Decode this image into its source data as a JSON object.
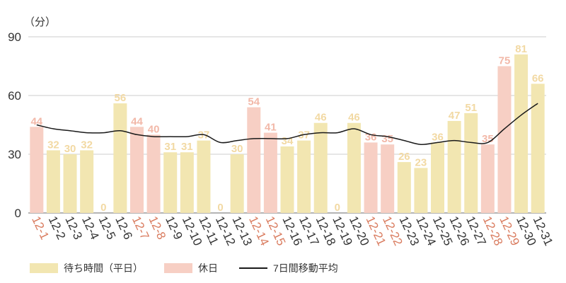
{
  "chart_data": {
    "type": "bar",
    "unit_label": "（分）",
    "ylim": [
      0,
      90
    ],
    "yticks": [
      0,
      30,
      60,
      90
    ],
    "grid": true,
    "categories": [
      "12-1",
      "12-2",
      "12-3",
      "12-4",
      "12-5",
      "12-6",
      "12-7",
      "12-8",
      "12-9",
      "12-10",
      "12-11",
      "12-12",
      "12-13",
      "12-14",
      "12-15",
      "12-16",
      "12-17",
      "12-18",
      "12-19",
      "12-20",
      "12-21",
      "12-22",
      "12-23",
      "12-24",
      "12-25",
      "12-26",
      "12-27",
      "12-28",
      "12-29",
      "12-30",
      "12-31"
    ],
    "values": [
      44,
      32,
      30,
      32,
      0,
      56,
      44,
      40,
      31,
      31,
      37,
      0,
      30,
      54,
      41,
      34,
      37,
      46,
      0,
      46,
      36,
      35,
      26,
      23,
      36,
      47,
      51,
      35,
      75,
      81,
      66
    ],
    "holiday": [
      true,
      false,
      false,
      false,
      false,
      false,
      true,
      true,
      false,
      false,
      false,
      false,
      false,
      true,
      true,
      false,
      false,
      false,
      false,
      false,
      true,
      true,
      false,
      false,
      false,
      false,
      false,
      true,
      true,
      false,
      false
    ],
    "moving_average": [
      45,
      43,
      42,
      41,
      41,
      42,
      40,
      39,
      39,
      39,
      40,
      36,
      37,
      38,
      38,
      38,
      40,
      41,
      41,
      43,
      40,
      39,
      37,
      35,
      36,
      37,
      36,
      36,
      43,
      50,
      56
    ],
    "series": [
      {
        "name": "待ち時間（平日）",
        "color": "#f2e6b1"
      },
      {
        "name": "休日",
        "color": "#f7cfc4"
      },
      {
        "name": "7日間移動平均",
        "color": "#1a1a1a"
      }
    ],
    "colors": {
      "weekday_label": "#f2d9a3",
      "holiday_label": "#f2b8a8",
      "holiday_tick": "#d97b5e",
      "weekday_tick": "#333333",
      "grid": "#cccccc"
    }
  }
}
